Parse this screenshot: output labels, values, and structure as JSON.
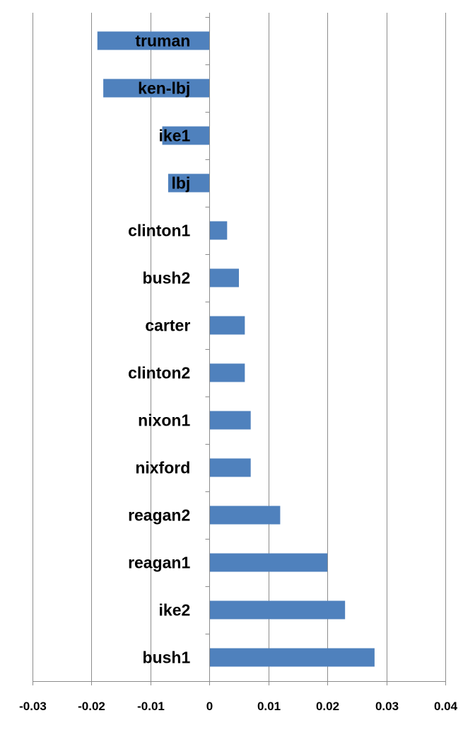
{
  "chart_data": {
    "type": "bar",
    "orientation": "horizontal",
    "categories": [
      "truman",
      "ken-lbj",
      "ike1",
      "lbj",
      "clinton1",
      "bush2",
      "carter",
      "clinton2",
      "nixon1",
      "nixford",
      "reagan2",
      "reagan1",
      "ike2",
      "bush1"
    ],
    "values": [
      -0.019,
      -0.018,
      -0.008,
      -0.007,
      0.003,
      0.005,
      0.006,
      0.006,
      0.007,
      0.007,
      0.012,
      0.02,
      0.023,
      0.028
    ],
    "xticks": [
      "-0.03",
      "-0.02",
      "-0.01",
      "0",
      "0.01",
      "0.02",
      "0.03",
      "0.04"
    ],
    "xlim": [
      -0.03,
      0.04
    ],
    "grid": true,
    "bar_color": "#4f81bd",
    "title": "",
    "xlabel": "",
    "ylabel": ""
  }
}
